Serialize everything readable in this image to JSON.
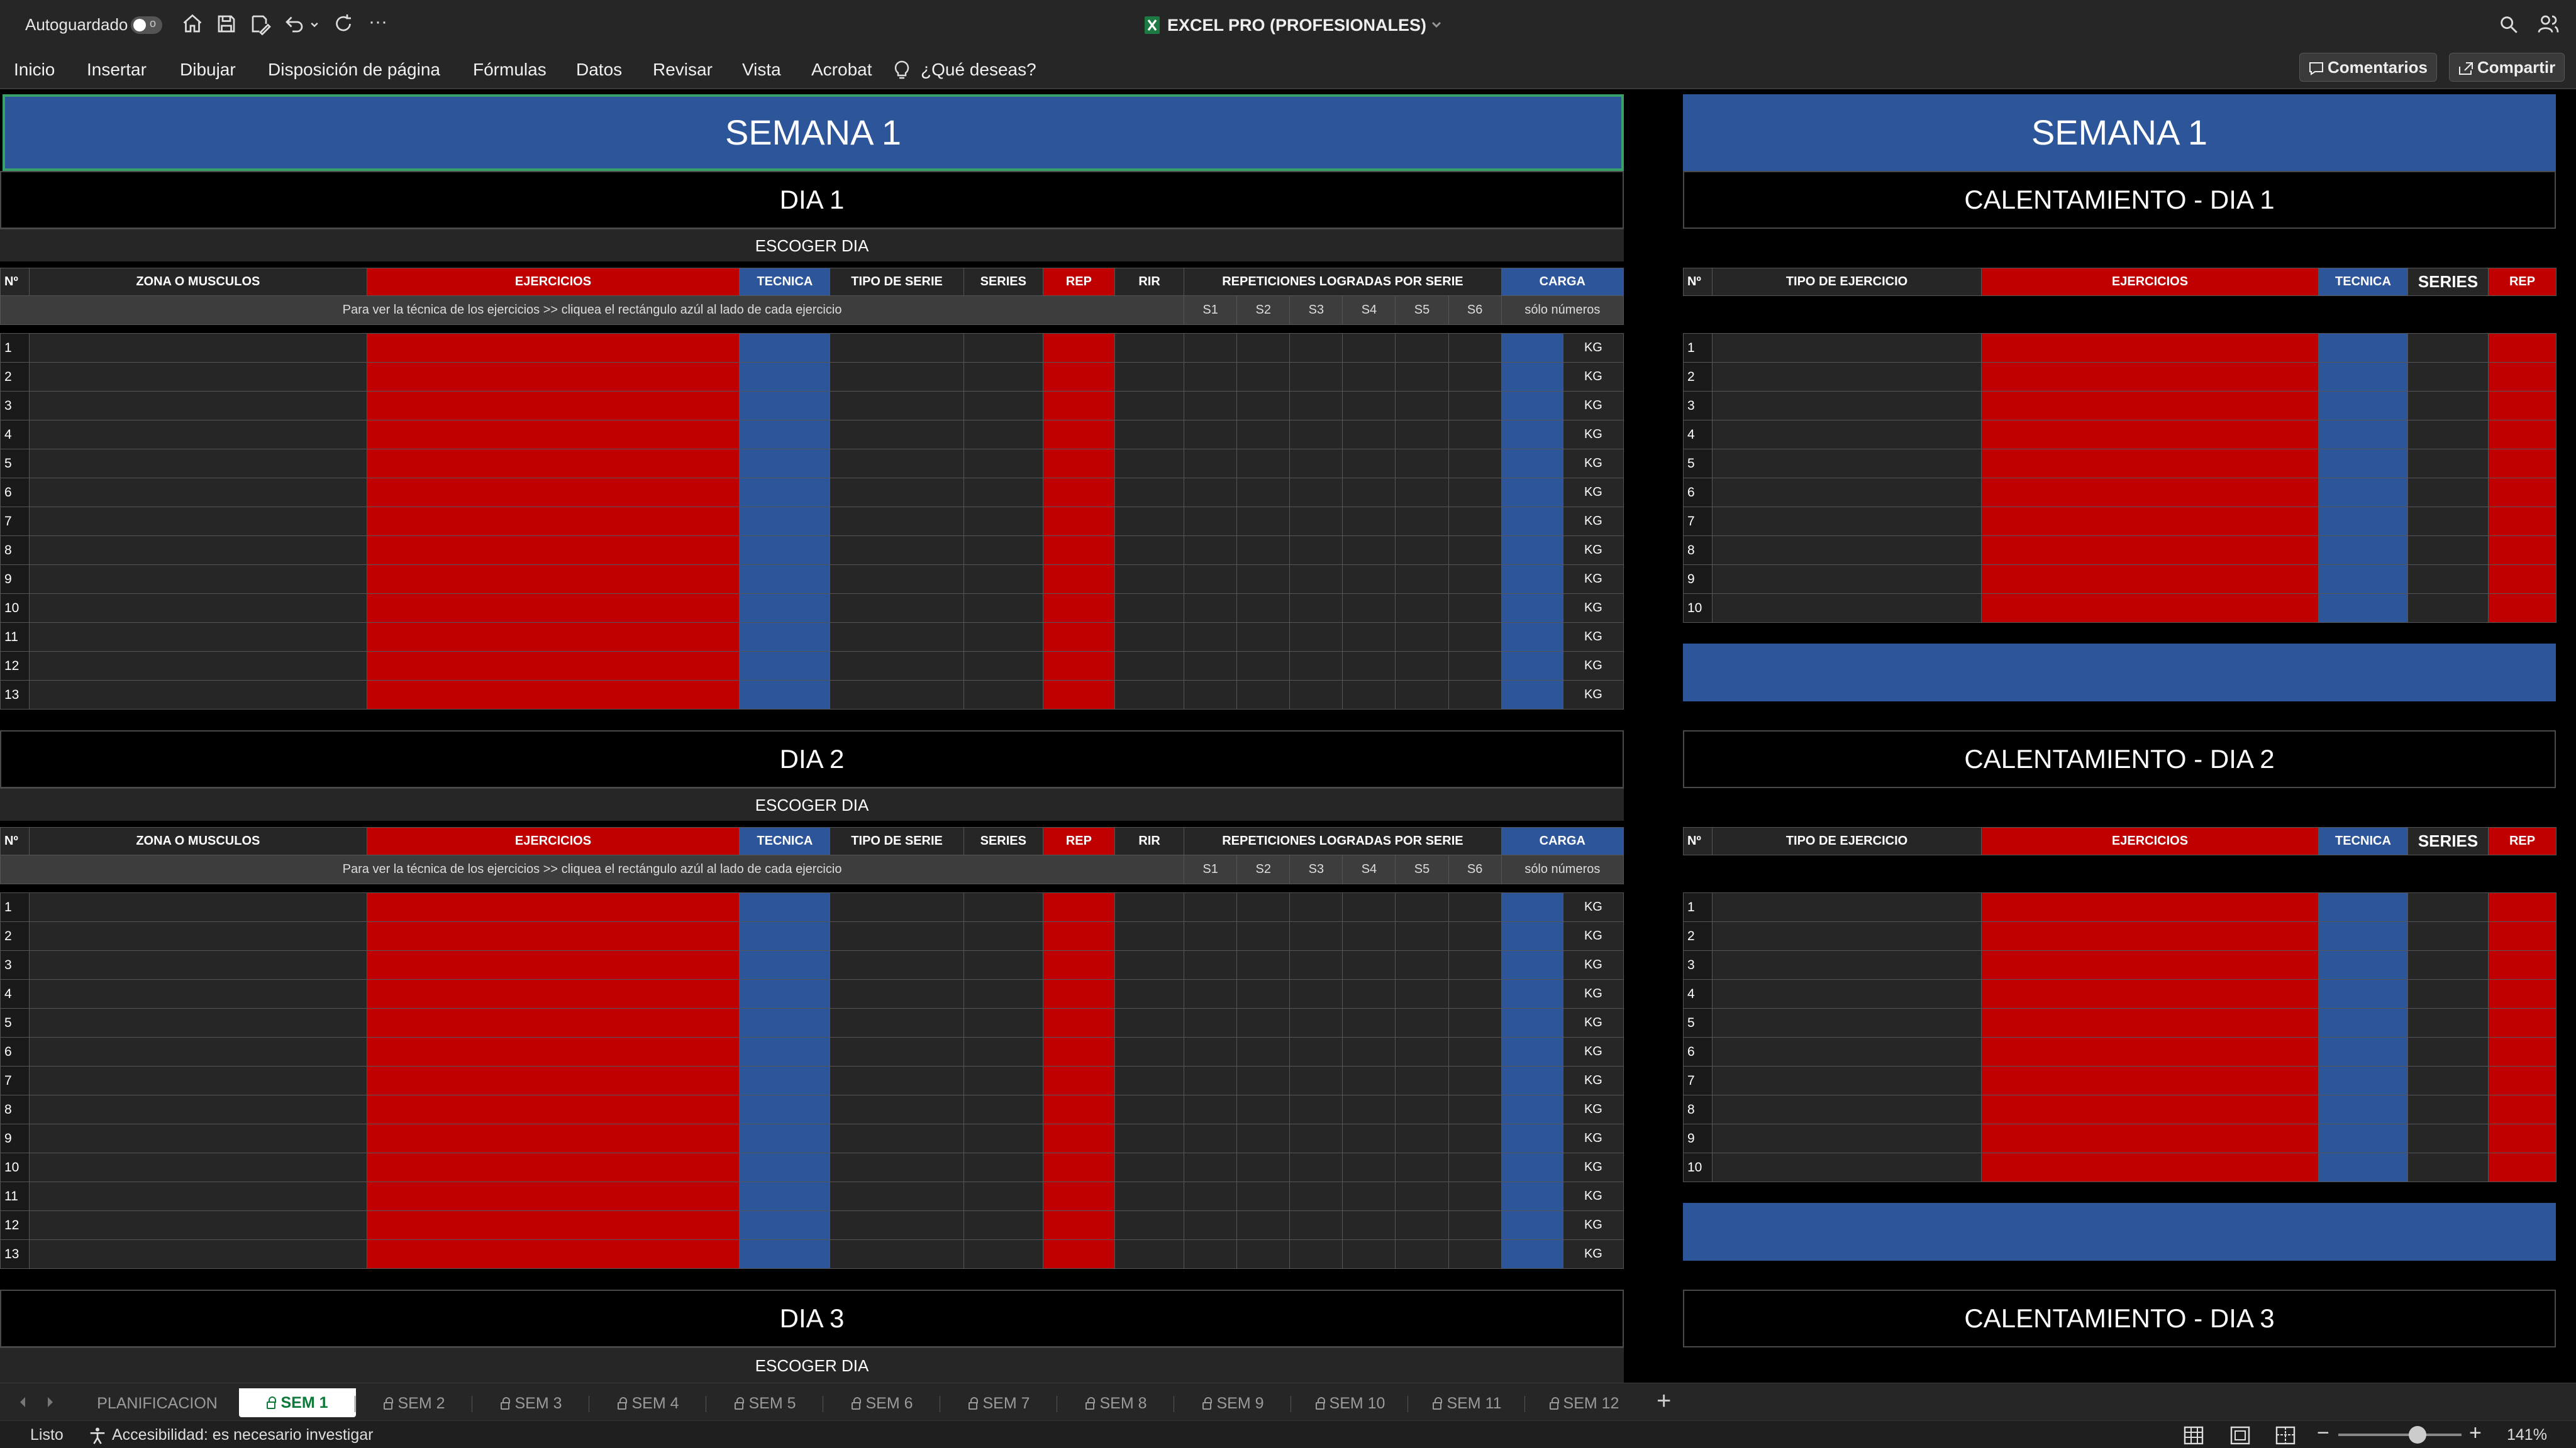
{
  "toolbar": {
    "autosave_label": "Autoguardado",
    "autosave_state": "o",
    "doc_title": "EXCEL PRO (PROFESIONALES)",
    "more": "···"
  },
  "ribbon": {
    "tabs": [
      "Inicio",
      "Insertar",
      "Dibujar",
      "Disposición de página",
      "Fórmulas",
      "Datos",
      "Revisar",
      "Vista",
      "Acrobat"
    ],
    "tell_me": "¿Qué deseas?",
    "comments": "Comentarios",
    "share": "Compartir"
  },
  "sheet": {
    "week_title": "SEMANA 1",
    "day_titles": [
      "DIA 1",
      "DIA 2",
      "DIA 3"
    ],
    "warmup_titles": [
      "CALENTAMIENTO - DIA 1",
      "CALENTAMIENTO - DIA 2",
      "CALENTAMIENTO - DIA 3"
    ],
    "escoger": "ESCOGER DIA",
    "headers": {
      "n": "Nº",
      "zona": "ZONA O MUSCULOS",
      "ejercicios": "EJERCICIOS",
      "tecnica": "TECNICA",
      "tipo_serie": "TIPO DE SERIE",
      "series": "SERIES",
      "rep": "REP",
      "rir": "RIR",
      "reps_logradas": "REPETICIONES LOGRADAS POR SERIE",
      "carga": "CARGA"
    },
    "hint": "Para ver la técnica de los ejercicios >> cliquea el rectángulo azúl al lado de cada ejercicio",
    "set_labels": [
      "S1",
      "S2",
      "S3",
      "S4",
      "S5",
      "S6"
    ],
    "solo_numeros": "sólo números",
    "kg": "KG",
    "row_numbers": [
      "1",
      "2",
      "3",
      "4",
      "5",
      "6",
      "7",
      "8",
      "9",
      "10",
      "11",
      "12",
      "13"
    ],
    "warm_headers": {
      "n": "Nº",
      "tipo": "TIPO DE EJERCICIO",
      "ejercicios": "EJERCICIOS",
      "tecnica": "TECNICA",
      "series": "SERIES",
      "rep": "REP"
    },
    "warm_row_numbers": [
      "1",
      "2",
      "3",
      "4",
      "5",
      "6",
      "7",
      "8",
      "9",
      "10"
    ]
  },
  "sheet_tabs": {
    "items": [
      "PLANIFICACION",
      "SEM 1",
      "SEM 2",
      "SEM 3",
      "SEM 4",
      "SEM 5",
      "SEM 6",
      "SEM 7",
      "SEM 8",
      "SEM 9",
      "SEM 10",
      "SEM 11",
      "SEM 12"
    ],
    "active": "SEM 1",
    "add": "+"
  },
  "status": {
    "ready": "Listo",
    "accessibility": "Accesibilidad: es necesario investigar",
    "zoom": "141%"
  },
  "colors": {
    "blue": "#2d5599",
    "red": "#c00000",
    "dark": "#262626",
    "active_tab_text": "#0e7a3a"
  }
}
